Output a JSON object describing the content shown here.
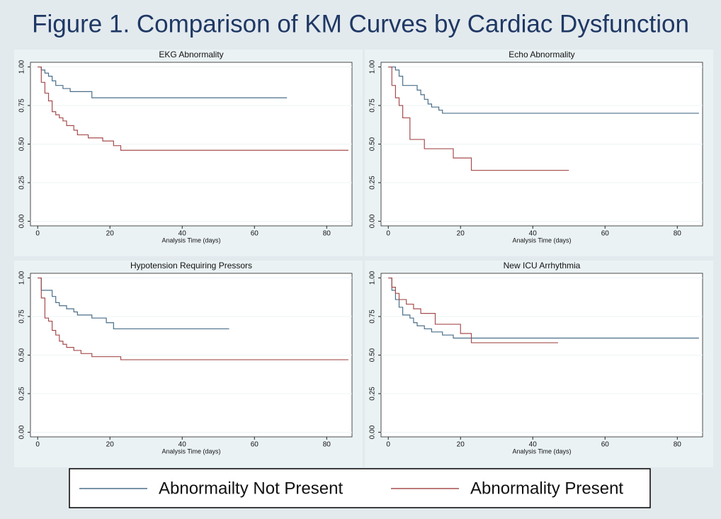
{
  "title": "Figure 1.  Comparison of KM Curves by Cardiac Dysfunction",
  "legend": [
    {
      "name": "Abnormailty Not Present",
      "color": "#4a6f8a"
    },
    {
      "name": "Abnormality Present",
      "color": "#a64d4d"
    }
  ],
  "chart_data": [
    {
      "type": "step",
      "title": "EKG Abnormality",
      "xlabel": "Analysis Time (days)",
      "xlim": [
        -2,
        87
      ],
      "xticks": [
        0,
        20,
        40,
        60,
        80
      ],
      "ylim": [
        -0.03,
        1.03
      ],
      "yticks": [
        {
          "value": 0,
          "label": "0.00"
        },
        {
          "value": 0.25,
          "label": "0.25"
        },
        {
          "value": 0.5,
          "label": "0.50"
        },
        {
          "value": 0.75,
          "label": "0.75"
        },
        {
          "value": 1,
          "label": "1.00"
        }
      ],
      "grid": true,
      "series": [
        {
          "x": [
            0,
            1,
            2,
            3,
            4,
            5,
            7,
            9,
            15,
            69
          ],
          "values": [
            1,
            0.98,
            0.96,
            0.94,
            0.91,
            0.88,
            0.86,
            0.84,
            0.8,
            0.8
          ]
        },
        {
          "x": [
            0,
            1,
            2,
            3,
            4,
            5,
            6,
            7,
            8,
            10,
            11,
            14,
            18,
            21,
            23,
            86
          ],
          "values": [
            1,
            0.9,
            0.83,
            0.78,
            0.71,
            0.69,
            0.67,
            0.65,
            0.62,
            0.59,
            0.56,
            0.54,
            0.52,
            0.49,
            0.46,
            0.46
          ]
        }
      ]
    },
    {
      "type": "step",
      "title": "Echo Abnormality",
      "xlabel": "Analysis Time (days)",
      "xlim": [
        -2,
        87
      ],
      "xticks": [
        0,
        20,
        40,
        60,
        80
      ],
      "ylim": [
        -0.03,
        1.03
      ],
      "yticks": [
        {
          "value": 0,
          "label": "0.00"
        },
        {
          "value": 0.25,
          "label": "0.25"
        },
        {
          "value": 0.5,
          "label": "0.50"
        },
        {
          "value": 0.75,
          "label": "0.75"
        },
        {
          "value": 1,
          "label": "1.00"
        }
      ],
      "grid": true,
      "series": [
        {
          "x": [
            0,
            2,
            3,
            4,
            8,
            9,
            10,
            11,
            12,
            14,
            15,
            86
          ],
          "values": [
            1,
            0.98,
            0.94,
            0.88,
            0.85,
            0.82,
            0.79,
            0.76,
            0.74,
            0.72,
            0.7,
            0.7
          ]
        },
        {
          "x": [
            0,
            1,
            2,
            3,
            4,
            6,
            10,
            18,
            23,
            50
          ],
          "values": [
            1,
            0.88,
            0.8,
            0.75,
            0.67,
            0.53,
            0.47,
            0.41,
            0.33,
            0.33
          ]
        }
      ]
    },
    {
      "type": "step",
      "title": "Hypotension Requiring Pressors",
      "xlabel": "Analysis Time (days)",
      "xlim": [
        -2,
        87
      ],
      "xticks": [
        0,
        20,
        40,
        60,
        80
      ],
      "ylim": [
        -0.03,
        1.03
      ],
      "yticks": [
        {
          "value": 0,
          "label": "0.00"
        },
        {
          "value": 0.25,
          "label": "0.25"
        },
        {
          "value": 0.5,
          "label": "0.50"
        },
        {
          "value": 0.75,
          "label": "0.75"
        },
        {
          "value": 1,
          "label": "1.00"
        }
      ],
      "grid": true,
      "series": [
        {
          "x": [
            0,
            1,
            4,
            5,
            6,
            8,
            10,
            11,
            15,
            19,
            21,
            53
          ],
          "values": [
            1,
            0.92,
            0.88,
            0.84,
            0.82,
            0.8,
            0.78,
            0.76,
            0.74,
            0.71,
            0.67,
            0.67
          ]
        },
        {
          "x": [
            0,
            1,
            2,
            3,
            4,
            5,
            6,
            7,
            8,
            10,
            12,
            15,
            23,
            86
          ],
          "values": [
            1,
            0.87,
            0.74,
            0.72,
            0.66,
            0.63,
            0.59,
            0.57,
            0.55,
            0.53,
            0.51,
            0.49,
            0.47,
            0.47
          ]
        }
      ]
    },
    {
      "type": "step",
      "title": "New ICU Arrhythmia",
      "xlabel": "Analysis Time (days)",
      "xlim": [
        -2,
        87
      ],
      "xticks": [
        0,
        20,
        40,
        60,
        80
      ],
      "ylim": [
        -0.03,
        1.03
      ],
      "yticks": [
        {
          "value": 0,
          "label": "0.00"
        },
        {
          "value": 0.25,
          "label": "0.25"
        },
        {
          "value": 0.5,
          "label": "0.50"
        },
        {
          "value": 0.75,
          "label": "0.75"
        },
        {
          "value": 1,
          "label": "1.00"
        }
      ],
      "grid": true,
      "series": [
        {
          "x": [
            0,
            1,
            2,
            3,
            4,
            6,
            7,
            8,
            10,
            12,
            15,
            18,
            86
          ],
          "values": [
            1,
            0.92,
            0.86,
            0.81,
            0.76,
            0.74,
            0.71,
            0.69,
            0.67,
            0.65,
            0.63,
            0.61,
            0.61
          ]
        },
        {
          "x": [
            0,
            1,
            2,
            3,
            5,
            7,
            9,
            13,
            20,
            23,
            47
          ],
          "values": [
            1,
            0.94,
            0.9,
            0.86,
            0.83,
            0.8,
            0.77,
            0.7,
            0.64,
            0.58,
            0.58
          ]
        }
      ]
    }
  ]
}
